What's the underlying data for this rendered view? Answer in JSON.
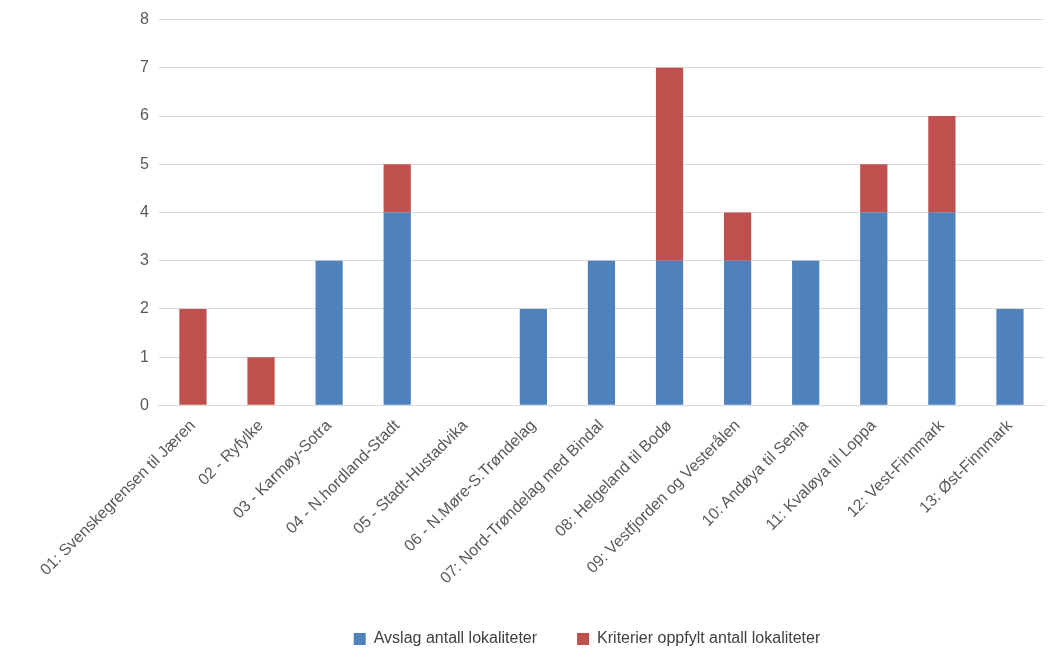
{
  "chart_data": {
    "type": "bar",
    "stacked": true,
    "categories": [
      "01: Svenskegrensen til Jæren",
      "02 - Ryfylke",
      "03 - Karmøy-Sotra",
      "04 - N.hordland-Stadt",
      "05 - Stadt-Hustadvika",
      "06 - N.Møre-S.Trøndelag",
      "07: Nord-Trøndelag med Bindal",
      "08: Helgeland til Bodø",
      "09: Vestfjorden og Vesterålen",
      "10: Andøya til Senja",
      "11: Kvaløya til Loppa",
      "12: Vest-Finnmark",
      "13: Øst-Finnmark"
    ],
    "series": [
      {
        "name": "Avslag antall lokaliteter",
        "color": "#4f81bd",
        "values": [
          0,
          0,
          3,
          4,
          0,
          2,
          3,
          3,
          3,
          3,
          4,
          4,
          2
        ]
      },
      {
        "name": "Kriterier oppfylt antall lokaliteter",
        "color": "#c0504d",
        "values": [
          2,
          1,
          0,
          1,
          0,
          0,
          0,
          4,
          1,
          0,
          1,
          2,
          0
        ]
      }
    ],
    "ylim": [
      0,
      8
    ],
    "yticks": [
      0,
      1,
      2,
      3,
      4,
      5,
      6,
      7,
      8
    ],
    "grid": "y",
    "legend": "bottom"
  }
}
